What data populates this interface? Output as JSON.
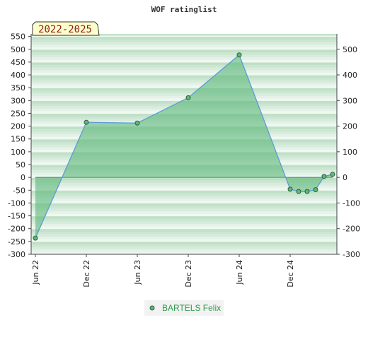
{
  "chart_data": {
    "type": "area",
    "title": "WOF ratinglist",
    "period_label": "2022-2025",
    "xlabel": "",
    "ylabel": "",
    "ylim": [
      -300,
      560
    ],
    "y_ticks_left": [
      -300,
      -250,
      -200,
      -150,
      -100,
      -50,
      0,
      50,
      100,
      150,
      200,
      250,
      300,
      350,
      400,
      450,
      500,
      550
    ],
    "y_ticks_right": [
      -300,
      -200,
      -100,
      0,
      100,
      200,
      300,
      400,
      500
    ],
    "x_ticks": [
      "Jun 22",
      "Dec 22",
      "Jun 23",
      "Dec 23",
      "Jun 24",
      "Dec 24"
    ],
    "x_range": [
      "2022-06",
      "2025-05"
    ],
    "grid": "horizontal bands",
    "legend_position": "bottom-center",
    "series": [
      {
        "name": "BARTELS Felix",
        "x": [
          "2022-06",
          "2022-12",
          "2023-06",
          "2023-12",
          "2024-06",
          "2024-12",
          "2025-01",
          "2025-02",
          "2025-03",
          "2025-04",
          "2025-05"
        ],
        "values": [
          -237,
          215,
          212,
          311,
          478,
          -46,
          -55,
          -55,
          -48,
          4,
          12
        ]
      }
    ],
    "colors": {
      "fill": "#5cb87a",
      "line": "#5b9bd5",
      "marker": "#2e8b57",
      "band_dark": "#c0e0c7",
      "band_light": "#f0f8f2",
      "period_bg": "#ffffcc"
    }
  }
}
